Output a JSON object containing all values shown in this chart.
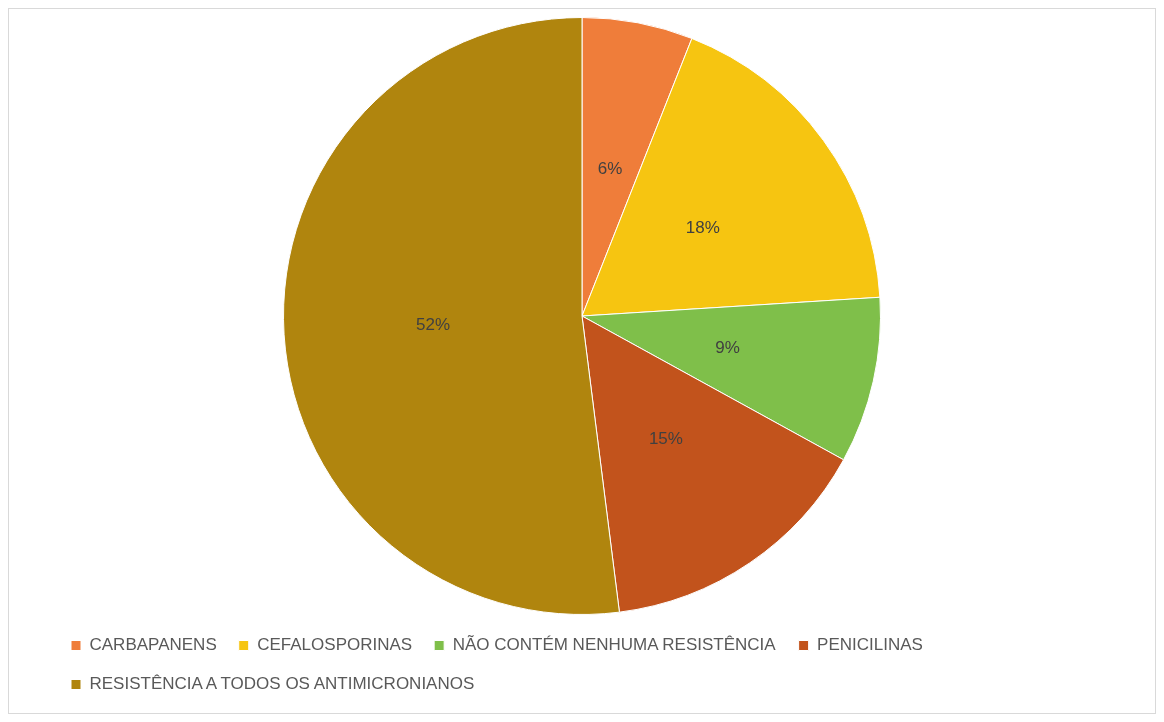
{
  "chart_data": {
    "type": "pie",
    "categories": [
      "CARBAPANENS",
      "CEFALOSPORINAS",
      "NÃO CONTÉM NENHUMA RESISTÊNCIA",
      "PENICILINAS",
      "RESISTÊNCIA A TODOS OS ANTIMICRONIANOS"
    ],
    "values": [
      6,
      18,
      9,
      15,
      52
    ],
    "colors": [
      "#ef7d3a",
      "#f6c511",
      "#7fbf4a",
      "#c2531c",
      "#b0850e"
    ],
    "value_labels": [
      "6%",
      "18%",
      "9%",
      "15%",
      "52%"
    ],
    "legend": "bottom"
  }
}
